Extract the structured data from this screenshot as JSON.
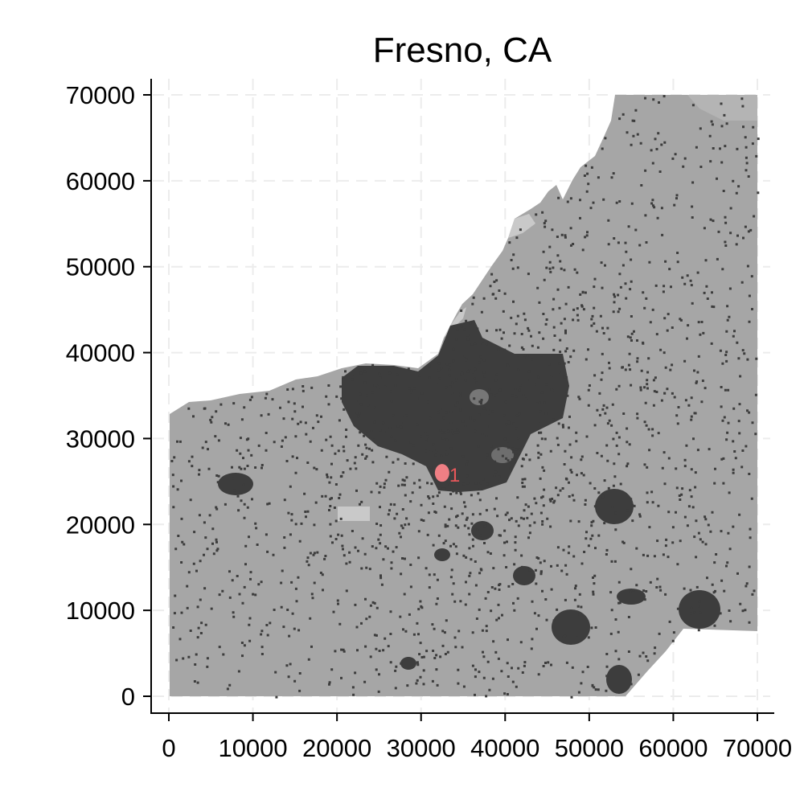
{
  "chart_data": {
    "type": "map",
    "title": "Fresno, CA",
    "xlim": [
      0,
      70000
    ],
    "ylim": [
      0,
      70000
    ],
    "x_ticks": [
      "0",
      "10000",
      "20000",
      "30000",
      "40000",
      "50000",
      "60000",
      "70000"
    ],
    "y_ticks": [
      "0",
      "10000",
      "20000",
      "30000",
      "40000",
      "50000",
      "60000",
      "70000"
    ],
    "grid": true,
    "annotation": {
      "label": "1",
      "x": 32500,
      "y": 26000,
      "color": "#e8575a"
    },
    "colors": {
      "land": "#a6a6a6",
      "urban": "#3d3d3d",
      "light": "#c9c9c9",
      "highlight": "#f07f84",
      "grid": "#ececec"
    }
  }
}
